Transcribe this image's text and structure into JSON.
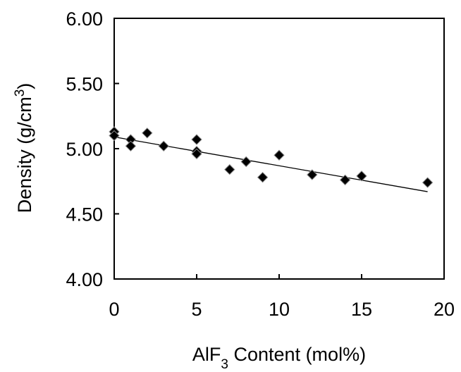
{
  "chart_data": {
    "type": "scatter",
    "title": "",
    "xlabel_prefix": "AlF",
    "xlabel_sub": "3",
    "xlabel_suffix": " Content (mol%)",
    "ylabel_prefix": "Density (g/cm",
    "ylabel_sup": "3",
    "ylabel_suffix": ")",
    "xlim": [
      0,
      20
    ],
    "ylim": [
      4.0,
      6.0
    ],
    "x_ticks": [
      0,
      5,
      10,
      15,
      20
    ],
    "y_ticks": [
      4.0,
      4.5,
      5.0,
      5.5,
      6.0
    ],
    "x_tick_labels": [
      "0",
      "5",
      "10",
      "15",
      "20"
    ],
    "y_tick_labels": [
      "4.00",
      "4.50",
      "5.00",
      "5.50",
      "6.00"
    ],
    "grid": false,
    "marker": "diamond",
    "marker_color": "#000000",
    "points": [
      {
        "x": 0,
        "y": 5.13
      },
      {
        "x": 0,
        "y": 5.1
      },
      {
        "x": 1,
        "y": 5.07
      },
      {
        "x": 1,
        "y": 5.02
      },
      {
        "x": 2,
        "y": 5.12
      },
      {
        "x": 3,
        "y": 5.02
      },
      {
        "x": 5,
        "y": 5.07
      },
      {
        "x": 5,
        "y": 4.98
      },
      {
        "x": 5,
        "y": 4.96
      },
      {
        "x": 7,
        "y": 4.84
      },
      {
        "x": 8,
        "y": 4.9
      },
      {
        "x": 9,
        "y": 4.78
      },
      {
        "x": 10,
        "y": 4.95
      },
      {
        "x": 12,
        "y": 4.8
      },
      {
        "x": 14,
        "y": 4.76
      },
      {
        "x": 15,
        "y": 4.79
      },
      {
        "x": 19,
        "y": 4.74
      }
    ],
    "trendline": {
      "x": [
        0,
        19
      ],
      "y": [
        5.09,
        4.67
      ]
    }
  }
}
